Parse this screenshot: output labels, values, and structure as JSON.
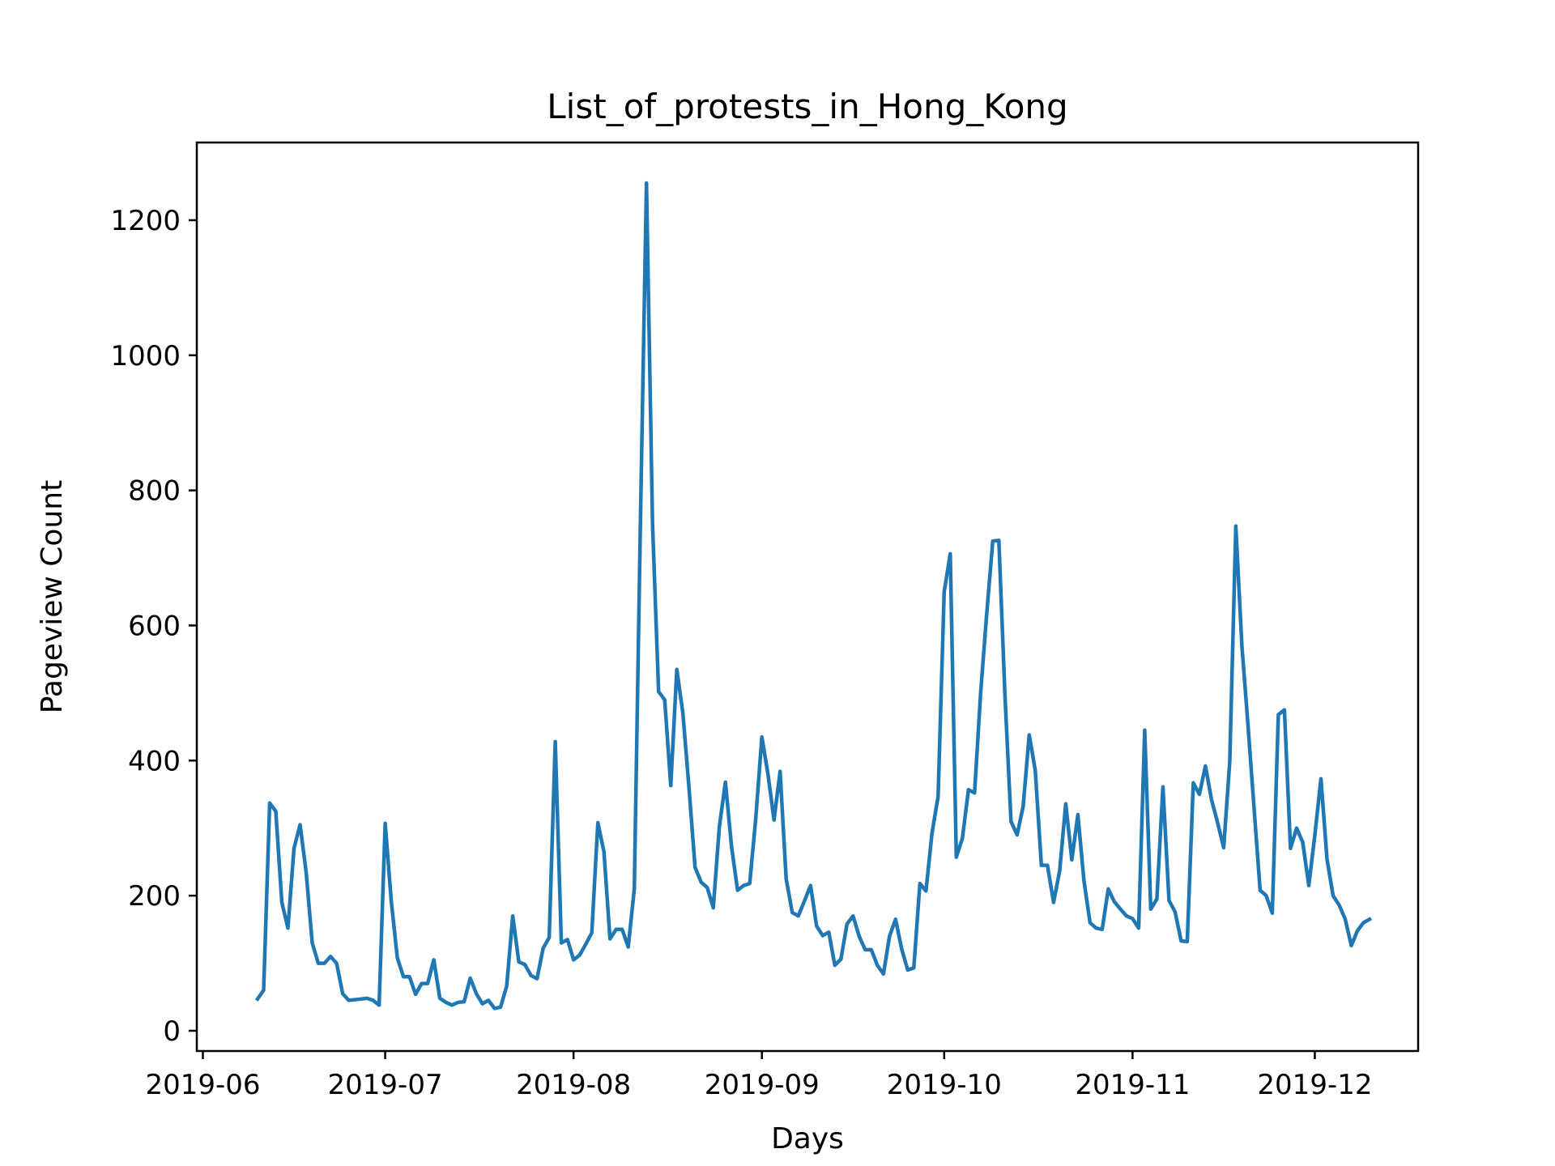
{
  "chart_data": {
    "type": "line",
    "title": "List_of_protests_in_Hong_Kong",
    "xlabel": "Days",
    "ylabel": "Pageview Count",
    "x_start": "2019-06-10",
    "x_step_days": 1,
    "xlim": [
      "2019-05-31",
      "2019-12-18"
    ],
    "ylim": [
      -30,
      1315
    ],
    "x_ticks": [
      {
        "date": "2019-06-01",
        "label": "2019-06"
      },
      {
        "date": "2019-07-01",
        "label": "2019-07"
      },
      {
        "date": "2019-08-01",
        "label": "2019-08"
      },
      {
        "date": "2019-09-01",
        "label": "2019-09"
      },
      {
        "date": "2019-10-01",
        "label": "2019-10"
      },
      {
        "date": "2019-11-01",
        "label": "2019-11"
      },
      {
        "date": "2019-12-01",
        "label": "2019-12"
      }
    ],
    "y_ticks": [
      0,
      200,
      400,
      600,
      800,
      1000,
      1200
    ],
    "grid": false,
    "series": [
      {
        "name": "",
        "color": "#1f77b4",
        "values": [
          47,
          60,
          337,
          325,
          190,
          152,
          270,
          305,
          235,
          130,
          100,
          100,
          110,
          100,
          55,
          45,
          46,
          47,
          48,
          45,
          38,
          307,
          192,
          108,
          80,
          80,
          54,
          70,
          70,
          105,
          48,
          42,
          38,
          42,
          43,
          78,
          55,
          40,
          45,
          33,
          35,
          66,
          170,
          102,
          98,
          82,
          77,
          122,
          138,
          428,
          130,
          135,
          105,
          112,
          128,
          145,
          308,
          265,
          136,
          150,
          150,
          124,
          210,
          750,
          1255,
          750,
          502,
          490,
          363,
          535,
          470,
          360,
          242,
          220,
          212,
          182,
          302,
          368,
          273,
          208,
          215,
          218,
          315,
          435,
          380,
          312,
          384,
          225,
          175,
          170,
          192,
          215,
          155,
          141,
          146,
          97,
          106,
          158,
          170,
          140,
          120,
          120,
          97,
          84,
          140,
          165,
          121,
          90,
          93,
          218,
          207,
          293,
          347,
          650,
          706,
          257,
          285,
          357,
          352,
          500,
          617,
          725,
          726,
          498,
          310,
          290,
          332,
          438,
          385,
          245,
          245,
          190,
          237,
          336,
          253,
          320,
          222,
          160,
          152,
          150,
          210,
          191,
          180,
          170,
          166,
          152,
          445,
          180,
          195,
          361,
          193,
          176,
          133,
          132,
          367,
          350,
          392,
          342,
          308,
          271,
          398,
          747,
          570,
          453,
          330,
          208,
          200,
          174,
          468,
          475,
          270,
          300,
          279,
          215,
          290,
          373,
          254,
          200,
          186,
          165,
          126,
          148,
          160,
          165
        ]
      }
    ]
  }
}
